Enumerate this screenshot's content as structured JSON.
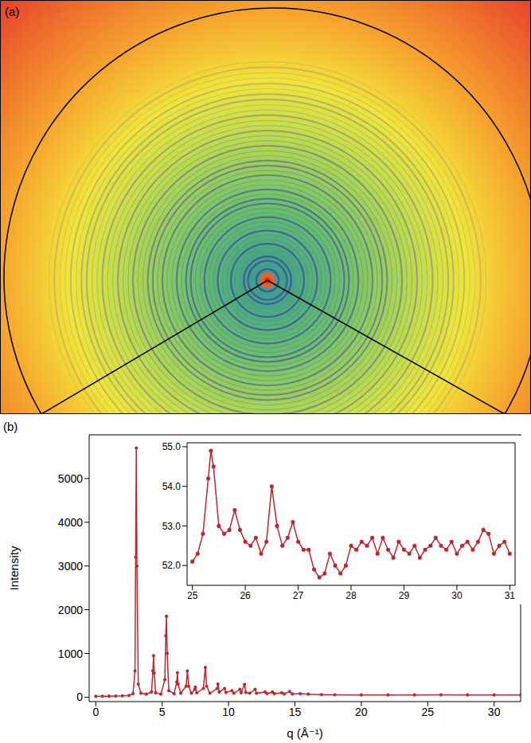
{
  "image_panel": {
    "label": "(a)"
  },
  "chart_data": [
    {
      "type": "line",
      "panel": "(b)",
      "x_label": "q (Å⁻¹)",
      "y_label": "Intensity",
      "color": "#c0272d",
      "marker": "circle",
      "xlim": [
        -0.5,
        32
      ],
      "xticks": [
        0,
        5,
        10,
        15,
        20,
        25,
        30
      ],
      "ylim": [
        -100,
        6000
      ],
      "yticks": [
        0,
        1000,
        2000,
        3000,
        4000,
        5000
      ],
      "x": [
        0,
        0.5,
        1,
        1.5,
        2,
        2.5,
        2.8,
        2.95,
        3,
        3.05,
        3.1,
        3.2,
        3.4,
        3.8,
        4.2,
        4.3,
        4.35,
        4.4,
        4.5,
        4.9,
        5.2,
        5.27,
        5.32,
        5.38,
        5.5,
        5.9,
        6.1,
        6.15,
        6.2,
        6.4,
        6.8,
        6.9,
        7,
        7.2,
        7.45,
        7.5,
        7.6,
        8.1,
        8.25,
        8.35,
        8.6,
        9.15,
        9.2,
        9.3,
        9.7,
        9.8,
        10.25,
        10.4,
        10.85,
        10.95,
        11.2,
        11.3,
        11.6,
        12,
        12.1,
        12.75,
        12.9,
        13.3,
        13.45,
        14,
        14.2,
        14.6,
        14.8,
        15.4,
        16,
        17,
        18,
        20,
        22,
        24,
        26,
        28,
        30,
        32
      ],
      "values": [
        20,
        22,
        25,
        28,
        32,
        40,
        80,
        600,
        3200,
        5700,
        3000,
        300,
        90,
        70,
        120,
        600,
        950,
        550,
        100,
        70,
        400,
        1400,
        1850,
        1000,
        150,
        80,
        350,
        560,
        300,
        90,
        250,
        600,
        250,
        90,
        180,
        230,
        100,
        200,
        680,
        250,
        90,
        200,
        300,
        120,
        200,
        110,
        150,
        90,
        180,
        100,
        290,
        110,
        90,
        180,
        90,
        120,
        80,
        120,
        80,
        100,
        75,
        130,
        75,
        80,
        70,
        60,
        55,
        52,
        52,
        52,
        53,
        52,
        52,
        52
      ]
    },
    {
      "type": "line",
      "color": "#c0272d",
      "marker": "circle",
      "xlim": [
        24.9,
        31.1
      ],
      "xticks": [
        25,
        26,
        27,
        28,
        29,
        30,
        31
      ],
      "ylim": [
        51.5,
        55.1
      ],
      "yticks": [
        {
          "value": 52,
          "label": "52.0"
        },
        {
          "value": 53,
          "label": "53.0"
        },
        {
          "value": 54,
          "label": "54.0"
        },
        {
          "value": 55,
          "label": "55.0"
        }
      ],
      "x": [
        25.0,
        25.1,
        25.2,
        25.3,
        25.35,
        25.4,
        25.5,
        25.6,
        25.7,
        25.8,
        25.9,
        26.0,
        26.1,
        26.2,
        26.3,
        26.4,
        26.5,
        26.6,
        26.7,
        26.8,
        26.9,
        27.0,
        27.1,
        27.2,
        27.3,
        27.4,
        27.5,
        27.6,
        27.7,
        27.8,
        27.9,
        28.0,
        28.1,
        28.2,
        28.3,
        28.4,
        28.5,
        28.6,
        28.7,
        28.8,
        28.9,
        29.0,
        29.1,
        29.2,
        29.3,
        29.4,
        29.5,
        29.6,
        29.7,
        29.8,
        29.9,
        30.0,
        30.1,
        30.2,
        30.3,
        30.4,
        30.5,
        30.6,
        30.7,
        30.8,
        30.9,
        31.0
      ],
      "values": [
        52.1,
        52.3,
        52.8,
        54.2,
        54.9,
        54.5,
        53.0,
        52.8,
        52.9,
        53.4,
        52.9,
        52.6,
        52.5,
        52.7,
        52.3,
        52.6,
        54.0,
        53.0,
        52.5,
        52.7,
        53.1,
        52.6,
        52.4,
        52.4,
        51.9,
        51.7,
        51.8,
        52.3,
        52.0,
        51.8,
        52.0,
        52.5,
        52.4,
        52.6,
        52.5,
        52.7,
        52.3,
        52.7,
        52.4,
        52.2,
        52.6,
        52.4,
        52.3,
        52.5,
        52.2,
        52.4,
        52.5,
        52.7,
        52.5,
        52.4,
        52.6,
        52.3,
        52.5,
        52.6,
        52.4,
        52.6,
        52.9,
        52.8,
        52.3,
        52.5,
        52.6,
        52.3
      ]
    }
  ]
}
